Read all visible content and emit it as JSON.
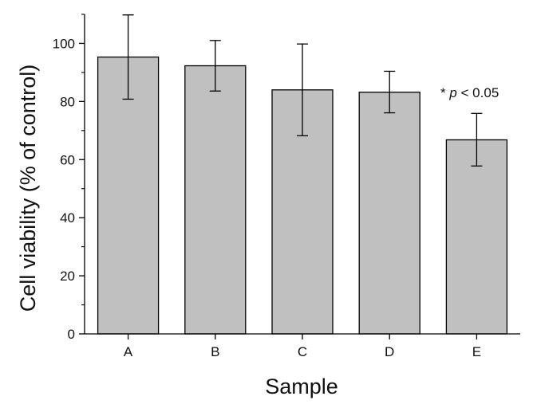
{
  "chart_data": {
    "type": "bar",
    "categories": [
      "A",
      "B",
      "C",
      "D",
      "E"
    ],
    "values": [
      95.3,
      92.3,
      84.0,
      83.2,
      66.8
    ],
    "error_upper": [
      109.8,
      101.0,
      99.8,
      90.4,
      75.9
    ],
    "error_lower": [
      80.8,
      83.6,
      68.2,
      76.1,
      57.8
    ],
    "xlabel": "Sample",
    "ylabel": "Cell viability (% of control)",
    "ylim": [
      0,
      110
    ],
    "yticks": [
      0,
      20,
      40,
      60,
      80,
      100
    ],
    "annotation": {
      "star": "* ",
      "p": "p",
      "rest": " < 0.05"
    },
    "bar_color": "#c0c0c0",
    "edge_color": "#000000",
    "grid": false,
    "legend": "none"
  }
}
